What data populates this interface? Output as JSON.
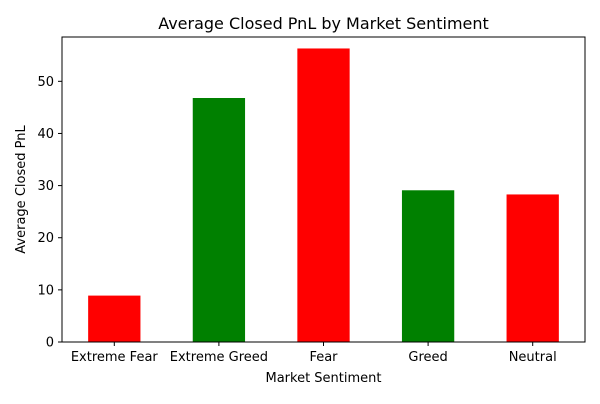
{
  "chart_data": {
    "type": "bar",
    "title": "Average Closed PnL by Market Sentiment",
    "xlabel": "Market Sentiment",
    "ylabel": "Average Closed PnL",
    "categories": [
      "Extreme Fear",
      "Extreme Greed",
      "Fear",
      "Greed",
      "Neutral"
    ],
    "values": [
      8.9,
      46.8,
      56.3,
      29.1,
      28.3
    ],
    "colors": [
      "#ff0000",
      "#008000",
      "#ff0000",
      "#008000",
      "#ff0000"
    ],
    "ylim": [
      0,
      58.5
    ],
    "yticks": [
      0,
      10,
      20,
      30,
      40,
      50
    ],
    "grid": false,
    "legend": "none"
  }
}
